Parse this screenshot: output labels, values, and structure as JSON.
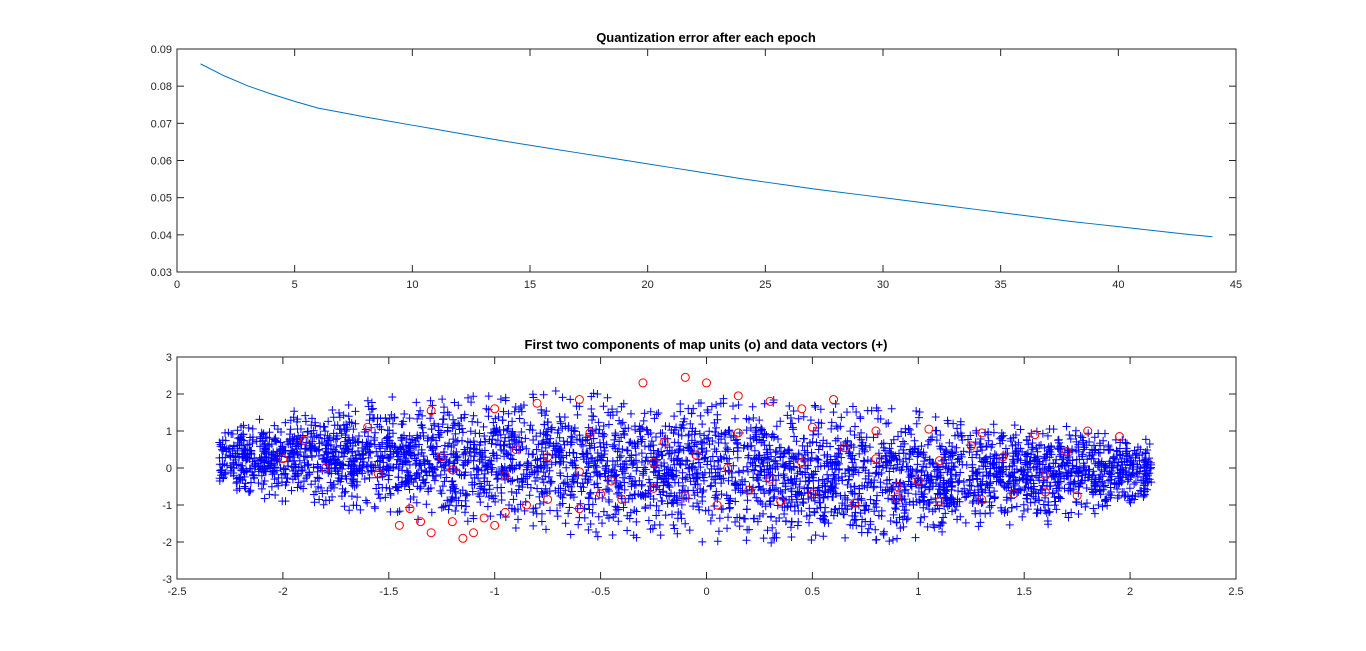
{
  "figure": {
    "background": "#ffffff"
  },
  "chart_data": [
    {
      "type": "line",
      "title": "Quantization error after each epoch",
      "xlabel": "",
      "ylabel": "",
      "xlim": [
        0,
        45
      ],
      "ylim": [
        0.03,
        0.09
      ],
      "xticks": [
        0,
        5,
        10,
        15,
        20,
        25,
        30,
        35,
        40,
        45
      ],
      "yticks": [
        0.03,
        0.04,
        0.05,
        0.06,
        0.07,
        0.08,
        0.09
      ],
      "xtick_labels": [
        "0",
        "5",
        "10",
        "15",
        "20",
        "25",
        "30",
        "35",
        "40",
        "45"
      ],
      "ytick_labels": [
        "0.03",
        "0.04",
        "0.05",
        "0.06",
        "0.07",
        "0.08",
        "0.09"
      ],
      "grid": false,
      "series": [
        {
          "color": "#0072bd",
          "x": [
            1,
            2,
            3,
            4,
            5,
            6,
            7,
            8,
            9,
            10,
            11,
            12,
            13,
            14,
            15,
            16,
            17,
            18,
            19,
            20,
            21,
            22,
            23,
            24,
            25,
            26,
            27,
            28,
            29,
            30,
            31,
            32,
            33,
            34,
            35,
            36,
            37,
            38,
            39,
            40,
            41,
            42,
            43,
            44
          ],
          "y": [
            0.086,
            0.0828,
            0.0801,
            0.0779,
            0.0759,
            0.0741,
            0.0729,
            0.0717,
            0.0706,
            0.0695,
            0.0684,
            0.0673,
            0.0662,
            0.0651,
            0.0641,
            0.0631,
            0.0621,
            0.0611,
            0.0601,
            0.0591,
            0.0581,
            0.0571,
            0.0561,
            0.0551,
            0.0542,
            0.0533,
            0.0524,
            0.0516,
            0.0508,
            0.05,
            0.0492,
            0.0484,
            0.0476,
            0.0468,
            0.046,
            0.0452,
            0.0444,
            0.0436,
            0.0429,
            0.0422,
            0.0415,
            0.0408,
            0.0401,
            0.0395
          ]
        }
      ]
    },
    {
      "type": "scatter",
      "title": "First two components of map units (o) and data vectors (+)",
      "xlabel": "",
      "ylabel": "",
      "xlim": [
        -2.5,
        2.5
      ],
      "ylim": [
        -3,
        3
      ],
      "xticks": [
        -2.5,
        -2,
        -1.5,
        -1,
        -0.5,
        0,
        0.5,
        1,
        1.5,
        2,
        2.5
      ],
      "yticks": [
        -3,
        -2,
        -1,
        0,
        1,
        2,
        3
      ],
      "xtick_labels": [
        "-2.5",
        "-2",
        "-1.5",
        "-1",
        "-0.5",
        "0",
        "0.5",
        "1",
        "1.5",
        "2",
        "2.5"
      ],
      "ytick_labels": [
        "-3",
        "-2",
        "-1",
        "0",
        "1",
        "2",
        "3"
      ],
      "grid": false,
      "series": [
        {
          "marker": "o",
          "color": "#ff0000",
          "points": [
            [
              -1.45,
              -1.55
            ],
            [
              -1.4,
              -1.1
            ],
            [
              -1.35,
              -1.45
            ],
            [
              -1.3,
              -1.75
            ],
            [
              -1.2,
              -1.45
            ],
            [
              -1.15,
              -1.9
            ],
            [
              -1.1,
              -1.75
            ],
            [
              -1.05,
              -1.35
            ],
            [
              -1.0,
              -1.55
            ],
            [
              -0.95,
              -1.2
            ],
            [
              -0.85,
              -1.0
            ],
            [
              -0.75,
              -0.85
            ],
            [
              -0.6,
              -1.1
            ],
            [
              -0.5,
              -0.7
            ],
            [
              -0.4,
              -0.85
            ],
            [
              -0.25,
              -0.55
            ],
            [
              -0.1,
              -0.75
            ],
            [
              0.05,
              -1.0
            ],
            [
              0.2,
              -0.6
            ],
            [
              0.35,
              -0.9
            ],
            [
              0.5,
              -0.7
            ],
            [
              0.7,
              -0.95
            ],
            [
              0.9,
              -0.8
            ],
            [
              1.1,
              -0.9
            ],
            [
              1.3,
              -0.85
            ],
            [
              1.45,
              -0.7
            ],
            [
              1.6,
              -0.65
            ],
            [
              1.75,
              -0.75
            ],
            [
              -0.1,
              2.45
            ],
            [
              -0.3,
              2.3
            ],
            [
              0.0,
              2.3
            ],
            [
              0.15,
              1.95
            ],
            [
              0.3,
              1.8
            ],
            [
              0.45,
              1.6
            ],
            [
              0.6,
              1.85
            ],
            [
              -0.6,
              1.85
            ],
            [
              -0.8,
              1.75
            ],
            [
              -1.0,
              1.6
            ],
            [
              -1.3,
              1.55
            ],
            [
              -1.6,
              1.1
            ],
            [
              -1.9,
              0.75
            ],
            [
              -2.0,
              0.25
            ],
            [
              -1.8,
              0.0
            ],
            [
              -1.55,
              -0.15
            ],
            [
              -1.25,
              0.3
            ],
            [
              -0.9,
              0.5
            ],
            [
              -0.55,
              0.95
            ],
            [
              -0.2,
              0.7
            ],
            [
              0.15,
              0.95
            ],
            [
              0.5,
              1.1
            ],
            [
              0.8,
              1.0
            ],
            [
              1.05,
              1.05
            ],
            [
              1.3,
              0.95
            ],
            [
              1.55,
              0.9
            ],
            [
              1.8,
              1.0
            ],
            [
              1.95,
              0.85
            ],
            [
              1.7,
              0.45
            ],
            [
              1.4,
              0.3
            ],
            [
              1.1,
              0.2
            ],
            [
              0.8,
              0.25
            ],
            [
              0.45,
              0.15
            ],
            [
              0.1,
              0.0
            ],
            [
              -0.25,
              0.15
            ],
            [
              -0.6,
              -0.1
            ],
            [
              -0.95,
              -0.2
            ],
            [
              -1.2,
              -0.05
            ],
            [
              -0.45,
              -0.35
            ],
            [
              0.3,
              -0.3
            ],
            [
              1.0,
              -0.35
            ],
            [
              1.6,
              -0.2
            ],
            [
              0.65,
              0.55
            ],
            [
              -0.05,
              0.35
            ],
            [
              -0.75,
              0.3
            ],
            [
              1.25,
              0.6
            ],
            [
              0.9,
              -0.5
            ]
          ]
        },
        {
          "marker": "+",
          "color": "#0000ff",
          "count": 4000,
          "seed": 7
        }
      ]
    }
  ]
}
